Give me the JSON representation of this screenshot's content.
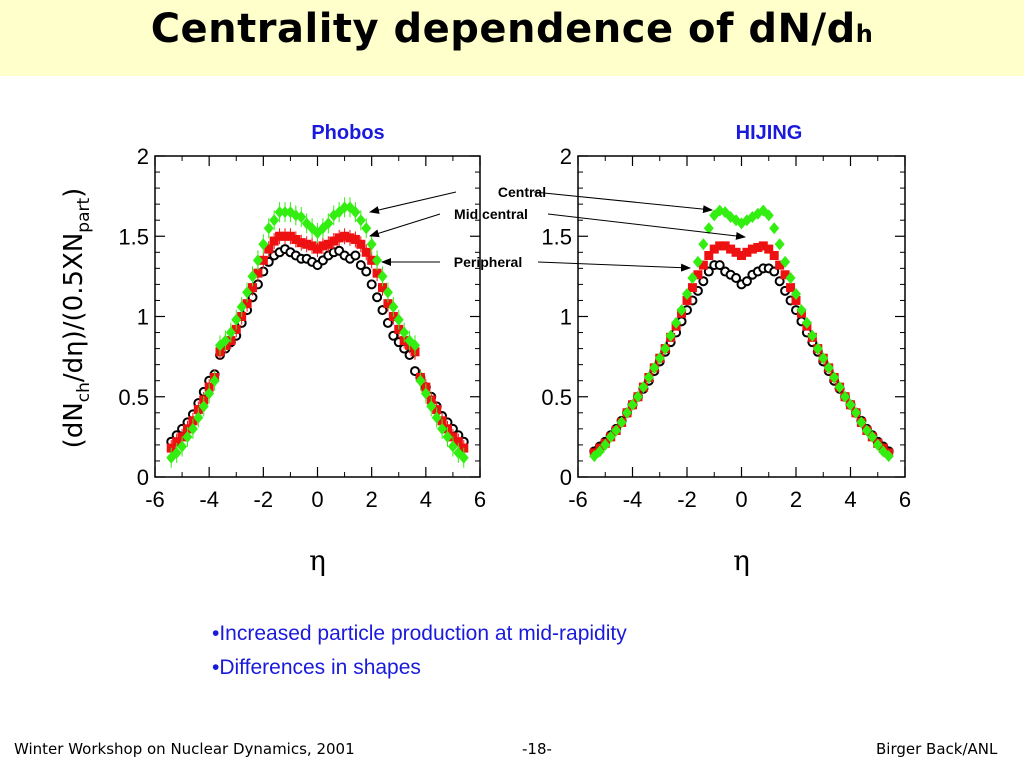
{
  "slide": {
    "title_main": "Centrality dependence of dN/d",
    "title_sub": "h",
    "bullets": [
      "•Increased particle production at mid-rapidity",
      "•Differences in shapes"
    ],
    "footer_left": "Winter Workshop on Nuclear Dynamics, 2001",
    "footer_center": "-18-",
    "footer_right": "Birger Back/ANL"
  },
  "annotations": [
    "Central",
    "Mid central",
    "Peripheral"
  ],
  "colors": {
    "central": "#33ee11",
    "mid": "#ee1111",
    "peripheral": "#000000",
    "title_blue": "#1a1adc",
    "title_bg": "#ffffcc"
  },
  "chart_data": [
    {
      "type": "scatter",
      "title": "Phobos",
      "xlabel": "η",
      "ylabel_parts": [
        "(dN",
        "ch",
        "/dη)/(0.5XN",
        "part",
        ")"
      ],
      "xlim": [
        -6,
        6
      ],
      "ylim": [
        0,
        2
      ],
      "xticks": [
        "-6",
        "-4",
        "-2",
        "0",
        "2",
        "4",
        "6"
      ],
      "yticks": [
        "0",
        "0.5",
        "1",
        "1.5",
        "2"
      ],
      "series": [
        {
          "key": "central",
          "marker": "diamond",
          "x": [
            -5.4,
            -5.2,
            -5.0,
            -4.8,
            -4.6,
            -4.4,
            -4.2,
            -4.0,
            -3.8,
            -3.6,
            -3.4,
            -3.2,
            -3.0,
            -2.8,
            -2.6,
            -2.4,
            -2.2,
            -2.0,
            -1.8,
            -1.6,
            -1.4,
            -1.2,
            -1.0,
            -0.8,
            -0.6,
            -0.4,
            -0.2,
            0.0,
            0.2,
            0.4,
            0.6,
            0.8,
            1.0,
            1.2,
            1.4,
            1.6,
            1.8,
            2.0,
            2.2,
            2.4,
            2.6,
            2.8,
            3.0,
            3.2,
            3.4,
            3.6,
            3.8,
            4.0,
            4.2,
            4.4,
            4.6,
            4.8,
            5.0,
            5.2,
            5.4
          ],
          "y": [
            0.12,
            0.15,
            0.19,
            0.25,
            0.3,
            0.37,
            0.44,
            0.52,
            0.6,
            0.82,
            0.85,
            0.9,
            0.98,
            1.06,
            1.15,
            1.25,
            1.35,
            1.45,
            1.55,
            1.6,
            1.65,
            1.65,
            1.65,
            1.63,
            1.62,
            1.58,
            1.55,
            1.52,
            1.55,
            1.58,
            1.63,
            1.65,
            1.68,
            1.68,
            1.65,
            1.6,
            1.55,
            1.45,
            1.35,
            1.25,
            1.15,
            1.06,
            0.98,
            0.9,
            0.85,
            0.82,
            0.6,
            0.52,
            0.44,
            0.37,
            0.3,
            0.25,
            0.19,
            0.15,
            0.12
          ]
        },
        {
          "key": "mid",
          "marker": "square",
          "x": [
            -5.4,
            -5.2,
            -5.0,
            -4.8,
            -4.6,
            -4.4,
            -4.2,
            -4.0,
            -3.8,
            -3.6,
            -3.4,
            -3.2,
            -3.0,
            -2.8,
            -2.6,
            -2.4,
            -2.2,
            -2.0,
            -1.8,
            -1.6,
            -1.4,
            -1.2,
            -1.0,
            -0.8,
            -0.6,
            -0.4,
            -0.2,
            0.0,
            0.2,
            0.4,
            0.6,
            0.8,
            1.0,
            1.2,
            1.4,
            1.6,
            1.8,
            2.0,
            2.2,
            2.4,
            2.6,
            2.8,
            3.0,
            3.2,
            3.4,
            3.6,
            3.8,
            4.0,
            4.2,
            4.4,
            4.6,
            4.8,
            5.0,
            5.2,
            5.4
          ],
          "y": [
            0.18,
            0.22,
            0.25,
            0.3,
            0.35,
            0.42,
            0.48,
            0.56,
            0.62,
            0.78,
            0.82,
            0.85,
            0.92,
            1.0,
            1.08,
            1.18,
            1.27,
            1.35,
            1.42,
            1.47,
            1.5,
            1.5,
            1.5,
            1.48,
            1.46,
            1.45,
            1.44,
            1.42,
            1.44,
            1.45,
            1.47,
            1.49,
            1.5,
            1.49,
            1.48,
            1.45,
            1.4,
            1.35,
            1.27,
            1.18,
            1.08,
            1.0,
            0.92,
            0.85,
            0.82,
            0.78,
            0.62,
            0.56,
            0.48,
            0.42,
            0.35,
            0.3,
            0.25,
            0.22,
            0.18
          ]
        },
        {
          "key": "peripheral",
          "marker": "circle",
          "x": [
            -5.4,
            -5.2,
            -5.0,
            -4.8,
            -4.6,
            -4.4,
            -4.2,
            -4.0,
            -3.8,
            -3.6,
            -3.4,
            -3.2,
            -3.0,
            -2.8,
            -2.6,
            -2.4,
            -2.2,
            -2.0,
            -1.8,
            -1.6,
            -1.4,
            -1.2,
            -1.0,
            -0.8,
            -0.6,
            -0.4,
            -0.2,
            0.0,
            0.2,
            0.4,
            0.6,
            0.8,
            1.0,
            1.2,
            1.4,
            1.6,
            1.8,
            2.0,
            2.2,
            2.4,
            2.6,
            2.8,
            3.0,
            3.2,
            3.4,
            3.6,
            3.8,
            4.0,
            4.2,
            4.4,
            4.6,
            4.8,
            5.0,
            5.2,
            5.4
          ],
          "y": [
            0.22,
            0.26,
            0.3,
            0.34,
            0.39,
            0.46,
            0.53,
            0.6,
            0.64,
            0.76,
            0.8,
            0.84,
            0.88,
            0.96,
            1.04,
            1.12,
            1.2,
            1.28,
            1.34,
            1.38,
            1.4,
            1.42,
            1.4,
            1.38,
            1.36,
            1.36,
            1.34,
            1.32,
            1.35,
            1.38,
            1.4,
            1.41,
            1.38,
            1.36,
            1.38,
            1.32,
            1.28,
            1.2,
            1.12,
            1.04,
            0.96,
            0.88,
            0.84,
            0.8,
            0.76,
            0.66,
            0.62,
            0.56,
            0.5,
            0.44,
            0.38,
            0.34,
            0.3,
            0.26,
            0.22
          ]
        }
      ]
    },
    {
      "type": "scatter",
      "title": "HIJING",
      "xlabel": "η",
      "xlim": [
        -6,
        6
      ],
      "ylim": [
        0,
        2
      ],
      "xticks": [
        "-6",
        "-4",
        "-2",
        "0",
        "2",
        "4",
        "6"
      ],
      "yticks": [
        "0",
        "0.5",
        "1",
        "1.5",
        "2"
      ],
      "series": [
        {
          "key": "central",
          "marker": "diamond",
          "x": [
            -5.4,
            -5.2,
            -5.0,
            -4.8,
            -4.6,
            -4.4,
            -4.2,
            -4.0,
            -3.8,
            -3.6,
            -3.4,
            -3.2,
            -3.0,
            -2.8,
            -2.6,
            -2.4,
            -2.2,
            -2.0,
            -1.8,
            -1.6,
            -1.4,
            -1.2,
            -1.0,
            -0.8,
            -0.6,
            -0.4,
            -0.2,
            0.0,
            0.2,
            0.4,
            0.6,
            0.8,
            1.0,
            1.2,
            1.4,
            1.6,
            1.8,
            2.0,
            2.2,
            2.4,
            2.6,
            2.8,
            3.0,
            3.2,
            3.4,
            3.6,
            3.8,
            4.0,
            4.2,
            4.4,
            4.6,
            4.8,
            5.0,
            5.2,
            5.4
          ],
          "y": [
            0.13,
            0.16,
            0.2,
            0.25,
            0.29,
            0.34,
            0.4,
            0.45,
            0.5,
            0.56,
            0.62,
            0.68,
            0.74,
            0.8,
            0.88,
            0.96,
            1.04,
            1.14,
            1.24,
            1.34,
            1.45,
            1.55,
            1.63,
            1.66,
            1.65,
            1.62,
            1.6,
            1.58,
            1.6,
            1.62,
            1.64,
            1.66,
            1.63,
            1.55,
            1.45,
            1.34,
            1.24,
            1.14,
            1.04,
            0.96,
            0.88,
            0.8,
            0.74,
            0.68,
            0.62,
            0.56,
            0.5,
            0.45,
            0.4,
            0.34,
            0.29,
            0.25,
            0.2,
            0.16,
            0.13
          ]
        },
        {
          "key": "mid",
          "marker": "square",
          "x": [
            -5.4,
            -5.2,
            -5.0,
            -4.8,
            -4.6,
            -4.4,
            -4.2,
            -4.0,
            -3.8,
            -3.6,
            -3.4,
            -3.2,
            -3.0,
            -2.8,
            -2.6,
            -2.4,
            -2.2,
            -2.0,
            -1.8,
            -1.6,
            -1.4,
            -1.2,
            -1.0,
            -0.8,
            -0.6,
            -0.4,
            -0.2,
            0.0,
            0.2,
            0.4,
            0.6,
            0.8,
            1.0,
            1.2,
            1.4,
            1.6,
            1.8,
            2.0,
            2.2,
            2.4,
            2.6,
            2.8,
            3.0,
            3.2,
            3.4,
            3.6,
            3.8,
            4.0,
            4.2,
            4.4,
            4.6,
            4.8,
            5.0,
            5.2,
            5.4
          ],
          "y": [
            0.15,
            0.18,
            0.21,
            0.25,
            0.29,
            0.34,
            0.4,
            0.45,
            0.5,
            0.56,
            0.62,
            0.68,
            0.74,
            0.8,
            0.87,
            0.94,
            1.02,
            1.1,
            1.18,
            1.26,
            1.32,
            1.38,
            1.42,
            1.44,
            1.44,
            1.42,
            1.4,
            1.38,
            1.4,
            1.42,
            1.43,
            1.44,
            1.42,
            1.38,
            1.32,
            1.26,
            1.18,
            1.1,
            1.02,
            0.94,
            0.87,
            0.8,
            0.74,
            0.68,
            0.62,
            0.56,
            0.5,
            0.45,
            0.4,
            0.34,
            0.29,
            0.25,
            0.21,
            0.18,
            0.15
          ]
        },
        {
          "key": "peripheral",
          "marker": "circle",
          "x": [
            -5.4,
            -5.2,
            -5.0,
            -4.8,
            -4.6,
            -4.4,
            -4.2,
            -4.0,
            -3.8,
            -3.6,
            -3.4,
            -3.2,
            -3.0,
            -2.8,
            -2.6,
            -2.4,
            -2.2,
            -2.0,
            -1.8,
            -1.6,
            -1.4,
            -1.2,
            -1.0,
            -0.8,
            -0.6,
            -0.4,
            -0.2,
            0.0,
            0.2,
            0.4,
            0.6,
            0.8,
            1.0,
            1.2,
            1.4,
            1.6,
            1.8,
            2.0,
            2.2,
            2.4,
            2.6,
            2.8,
            3.0,
            3.2,
            3.4,
            3.6,
            3.8,
            4.0,
            4.2,
            4.4,
            4.6,
            4.8,
            5.0,
            5.2,
            5.4
          ],
          "y": [
            0.16,
            0.19,
            0.22,
            0.26,
            0.3,
            0.35,
            0.4,
            0.45,
            0.5,
            0.55,
            0.6,
            0.66,
            0.72,
            0.78,
            0.84,
            0.9,
            0.97,
            1.04,
            1.1,
            1.16,
            1.22,
            1.28,
            1.32,
            1.32,
            1.28,
            1.26,
            1.24,
            1.2,
            1.22,
            1.26,
            1.28,
            1.3,
            1.3,
            1.28,
            1.22,
            1.16,
            1.1,
            1.04,
            0.97,
            0.9,
            0.84,
            0.78,
            0.72,
            0.66,
            0.6,
            0.55,
            0.5,
            0.45,
            0.4,
            0.35,
            0.3,
            0.26,
            0.22,
            0.19,
            0.16
          ]
        }
      ]
    }
  ]
}
